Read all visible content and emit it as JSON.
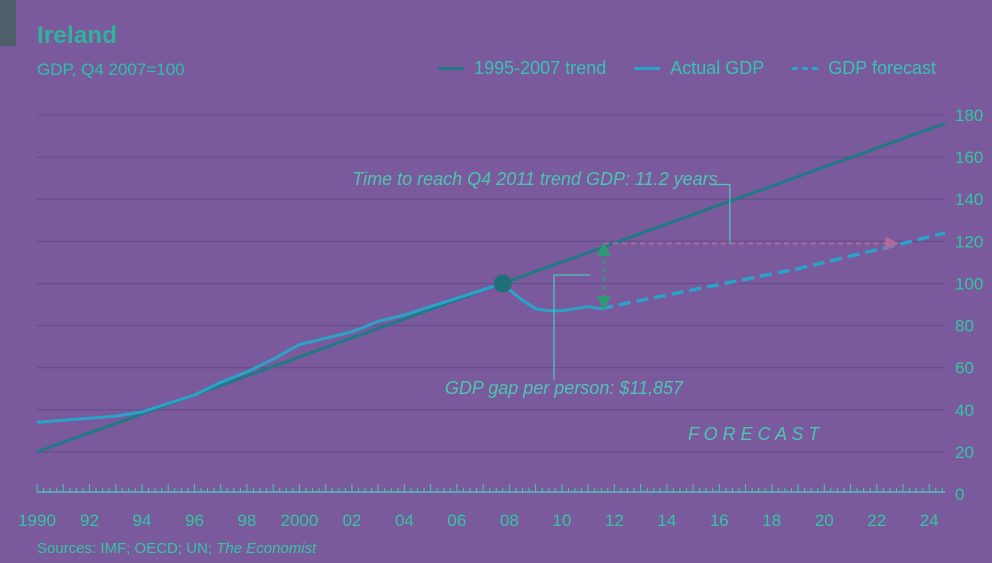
{
  "header": {
    "title": "Ireland",
    "subtitle": "GDP, Q4 2007=100"
  },
  "legend": [
    {
      "label": "1995-2007 trend",
      "style": "solid",
      "color": "#1f7a86"
    },
    {
      "label": "Actual GDP",
      "style": "solid",
      "color": "#2aa3c8"
    },
    {
      "label": "GDP forecast",
      "style": "dashed",
      "color": "#2aa3c8"
    }
  ],
  "source": {
    "prefix": "Sources: IMF; OECD; UN; ",
    "italic": "The Economist"
  },
  "colors": {
    "background": "#7a5a9c",
    "gridline": "#6a4f8f",
    "trend": "#1f7a86",
    "actual": "#2aa3c8",
    "annotation": "#4cc5b1",
    "arrow_green": "#2e9a72",
    "arrow_purple": "#b06a9c",
    "text": "#32c7a2"
  },
  "chart_data": {
    "type": "line",
    "title": "Ireland",
    "subtitle": "GDP, Q4 2007=100",
    "xlabel": "",
    "ylabel": "",
    "xlim": [
      1990,
      2024.6
    ],
    "ylim": [
      0,
      180
    ],
    "y_ticks": [
      0,
      20,
      40,
      60,
      80,
      100,
      120,
      140,
      160,
      180
    ],
    "x_ticks": [
      {
        "x": 1990,
        "label": "1990"
      },
      {
        "x": 1992,
        "label": "92"
      },
      {
        "x": 1994,
        "label": "94"
      },
      {
        "x": 1996,
        "label": "96"
      },
      {
        "x": 1998,
        "label": "98"
      },
      {
        "x": 2000,
        "label": "2000"
      },
      {
        "x": 2002,
        "label": "02"
      },
      {
        "x": 2004,
        "label": "04"
      },
      {
        "x": 2006,
        "label": "06"
      },
      {
        "x": 2008,
        "label": "08"
      },
      {
        "x": 2010,
        "label": "10"
      },
      {
        "x": 2012,
        "label": "12"
      },
      {
        "x": 2014,
        "label": "14"
      },
      {
        "x": 2016,
        "label": "16"
      },
      {
        "x": 2018,
        "label": "18"
      },
      {
        "x": 2020,
        "label": "20"
      },
      {
        "x": 2022,
        "label": "22"
      },
      {
        "x": 2024,
        "label": "24"
      }
    ],
    "grid": true,
    "legend_position": "top-right",
    "series": [
      {
        "name": "1995-2007 trend",
        "style": "solid",
        "points": [
          [
            1990,
            20
          ],
          [
            2007.75,
            100
          ],
          [
            2024.6,
            176
          ]
        ]
      },
      {
        "name": "Actual GDP",
        "style": "solid",
        "points": [
          [
            1990,
            34
          ],
          [
            1991,
            35
          ],
          [
            1992,
            36
          ],
          [
            1993,
            37
          ],
          [
            1994,
            39
          ],
          [
            1995,
            43
          ],
          [
            1996,
            47
          ],
          [
            1997,
            53
          ],
          [
            1998,
            58
          ],
          [
            1999,
            64
          ],
          [
            2000,
            71
          ],
          [
            2001,
            74
          ],
          [
            2002,
            77
          ],
          [
            2003,
            82
          ],
          [
            2004,
            85
          ],
          [
            2005,
            89
          ],
          [
            2006,
            93
          ],
          [
            2007,
            97
          ],
          [
            2007.5,
            99
          ],
          [
            2007.75,
            100
          ],
          [
            2008,
            97
          ],
          [
            2008.5,
            92
          ],
          [
            2009,
            88
          ],
          [
            2009.5,
            87
          ],
          [
            2010,
            87
          ],
          [
            2010.5,
            88
          ],
          [
            2011,
            89
          ],
          [
            2011.5,
            88
          ]
        ]
      },
      {
        "name": "GDP forecast",
        "style": "dashed",
        "points": [
          [
            2011.5,
            88
          ],
          [
            2013,
            92
          ],
          [
            2015,
            97
          ],
          [
            2017,
            102
          ],
          [
            2019,
            107
          ],
          [
            2021,
            113
          ],
          [
            2023,
            119
          ],
          [
            2024.6,
            124
          ]
        ]
      }
    ],
    "marker": {
      "x": 2007.75,
      "y": 100
    },
    "annotations": [
      {
        "text": "Time to reach Q4 2011 trend GDP: 11.2 years",
        "anchor": [
          2016.4,
          130
        ],
        "line": [
          2011.6,
          119,
          2022.8,
          119
        ]
      },
      {
        "text": "GDP gap per person: $11,857",
        "anchor": [
          2011.6,
          104
        ],
        "line": [
          2011.6,
          88,
          2011.6,
          119
        ]
      },
      {
        "text": "F O R E C A S T",
        "anchor": [
          2017.5,
          28
        ]
      }
    ]
  }
}
